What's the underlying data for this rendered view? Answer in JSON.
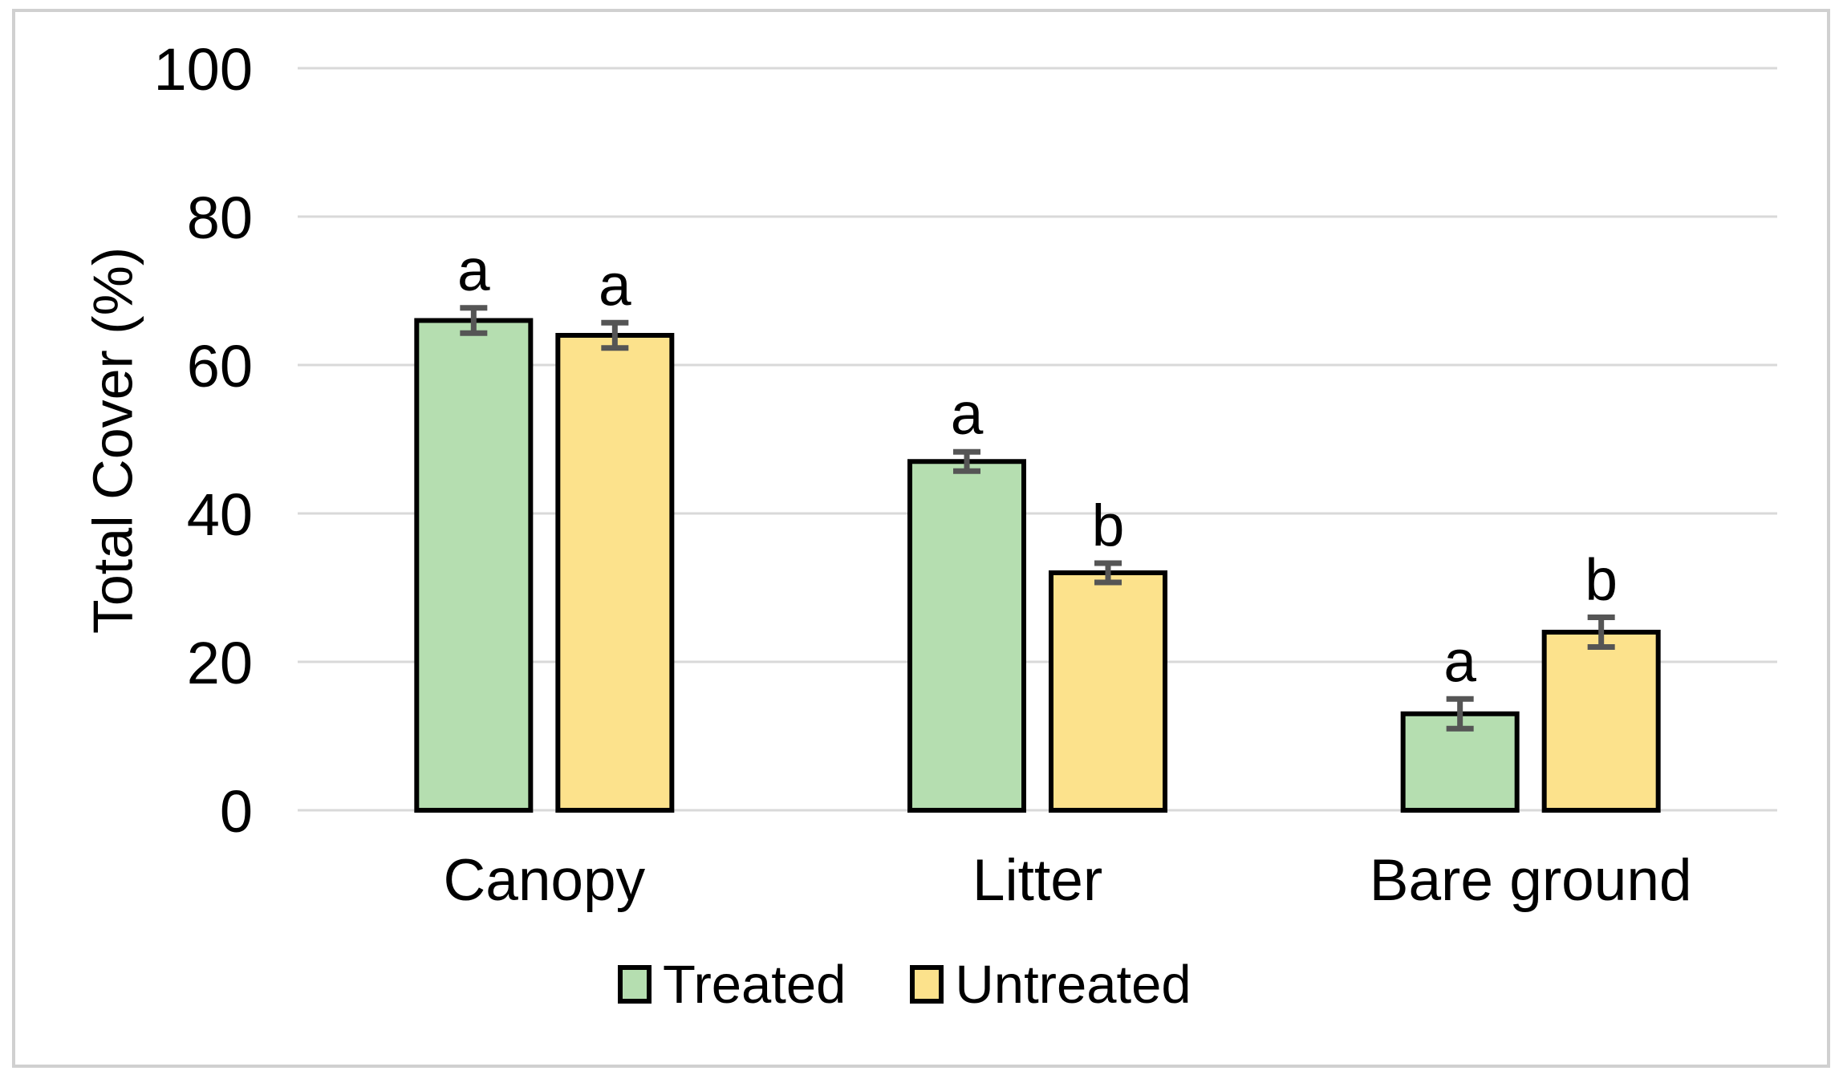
{
  "chart_data": {
    "type": "bar",
    "title": "",
    "xlabel": "",
    "ylabel": "Total Cover (%)",
    "ylim": [
      0,
      100
    ],
    "yticks": [
      0,
      20,
      40,
      60,
      80,
      100
    ],
    "grid": "horizontal gridlines on",
    "legend_position": "bottom",
    "categories": [
      "Canopy",
      "Litter",
      "Bare ground"
    ],
    "series": [
      {
        "name": "Treated",
        "color": "#b5deb0",
        "values": [
          66,
          47,
          13
        ],
        "errors": [
          1.7,
          1.3,
          2.0
        ],
        "significance_letters": [
          "a",
          "a",
          "a"
        ]
      },
      {
        "name": "Untreated",
        "color": "#fce28c",
        "values": [
          64,
          32,
          24
        ],
        "errors": [
          1.7,
          1.3,
          2.0
        ],
        "significance_letters": [
          "a",
          "b",
          "b"
        ]
      }
    ],
    "colors": {
      "bar_outline": "#000000",
      "error_bar": "#555555",
      "gridline": "#d9d9d9",
      "outer_border": "#d0d0d0",
      "text": "#000000"
    }
  }
}
